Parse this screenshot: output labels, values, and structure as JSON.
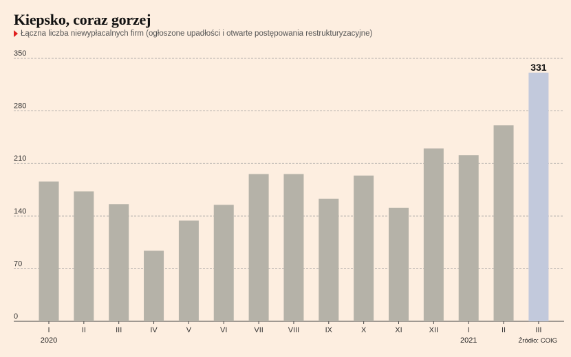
{
  "title": "Kiepsko, coraz gorzej",
  "subtitle": "Łączna liczba niewypłacalnych firm (ogłoszone upadłości i otwarte postępowania restrukturyzacyjne)",
  "source": "Źródło: COIG",
  "colors": {
    "background": "#fdeee0",
    "bar": "#b5b2a8",
    "highlight_bar": "#c2c9dc",
    "marker": "#e01e1e"
  },
  "chart_data": {
    "type": "bar",
    "categories": [
      "I",
      "II",
      "III",
      "IV",
      "V",
      "VI",
      "VII",
      "VIII",
      "IX",
      "X",
      "XI",
      "XII",
      "I",
      "II",
      "III"
    ],
    "year_labels": [
      {
        "index": 0,
        "label": "2020"
      },
      {
        "index": 12,
        "label": "2021"
      }
    ],
    "values": [
      186,
      173,
      156,
      94,
      134,
      155,
      196,
      196,
      163,
      194,
      151,
      230,
      221,
      261,
      331
    ],
    "highlight_index": 14,
    "data_labels": [
      {
        "index": 14,
        "label": "331"
      }
    ],
    "yticks": [
      0,
      70,
      140,
      210,
      280,
      350
    ],
    "ylim": [
      0,
      350
    ],
    "grid": true,
    "grid_style": "dashed",
    "legend": "none"
  }
}
